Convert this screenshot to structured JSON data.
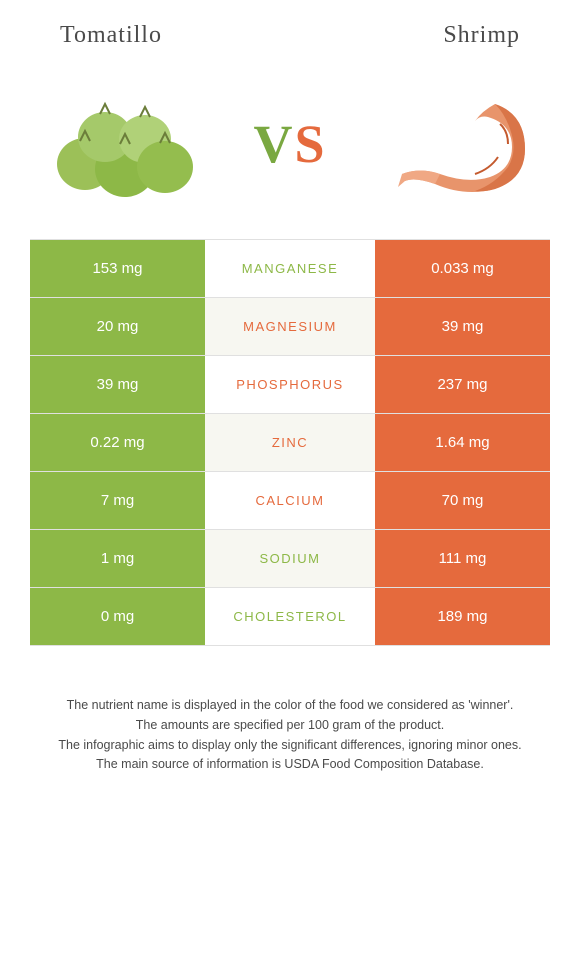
{
  "header": {
    "left": "Tomatillo",
    "right": "Shrimp"
  },
  "colors": {
    "left_food": "#8db847",
    "right_food": "#e56a3d",
    "alt_row": "#f7f7f1",
    "border": "#e0e0e0",
    "text": "#4a4a4a"
  },
  "vs": {
    "v": "V",
    "s": "S"
  },
  "rows": [
    {
      "left": "153 mg",
      "label": "Manganese",
      "right": "0.033 mg",
      "winner": "left"
    },
    {
      "left": "20 mg",
      "label": "Magnesium",
      "right": "39 mg",
      "winner": "right"
    },
    {
      "left": "39 mg",
      "label": "Phosphorus",
      "right": "237 mg",
      "winner": "right"
    },
    {
      "left": "0.22 mg",
      "label": "Zinc",
      "right": "1.64 mg",
      "winner": "right"
    },
    {
      "left": "7 mg",
      "label": "Calcium",
      "right": "70 mg",
      "winner": "right"
    },
    {
      "left": "1 mg",
      "label": "Sodium",
      "right": "111 mg",
      "winner": "left"
    },
    {
      "left": "0 mg",
      "label": "Cholesterol",
      "right": "189 mg",
      "winner": "left"
    }
  ],
  "footnotes": [
    "The nutrient name is displayed in the color of the food we considered as 'winner'.",
    "The amounts are specified per 100 gram of the product.",
    "The infographic aims to display only the significant differences, ignoring minor ones.",
    "The main source of information is USDA Food Composition Database."
  ]
}
